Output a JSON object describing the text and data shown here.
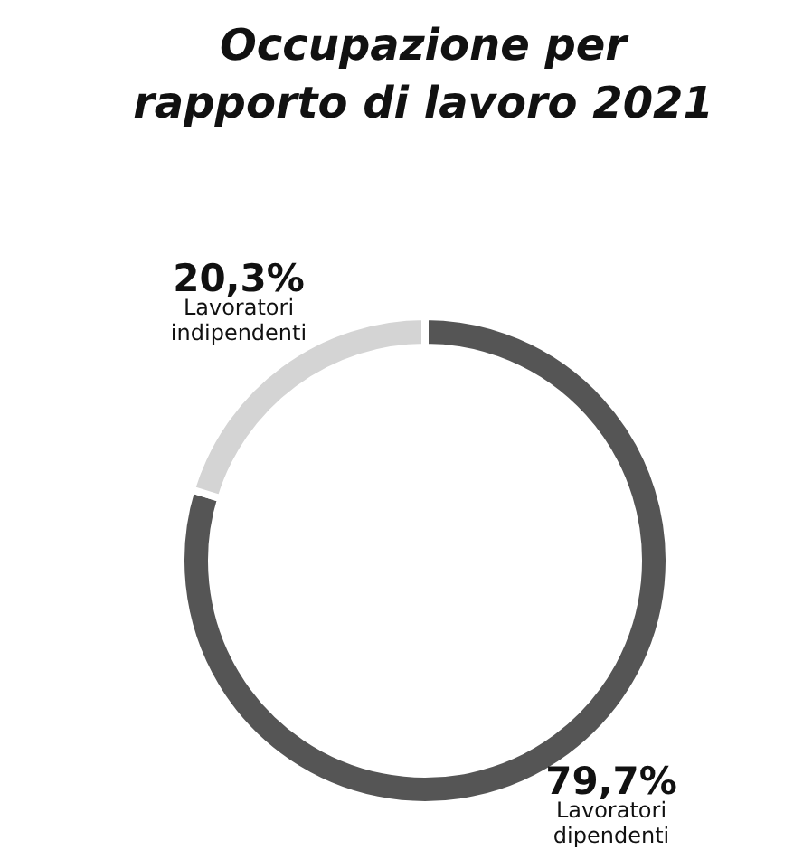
{
  "chart_data": {
    "type": "donut",
    "title": "Occupazione per rapporto di lavoro 2021",
    "categories": [
      "Lavoratori dipendenti",
      "Lavoratori indipendenti"
    ],
    "values": [
      79.7,
      20.3
    ],
    "colors": [
      "#555555",
      "#d4d4d4"
    ],
    "value_labels": [
      "79,7%",
      "20,3%"
    ],
    "legend": false
  }
}
